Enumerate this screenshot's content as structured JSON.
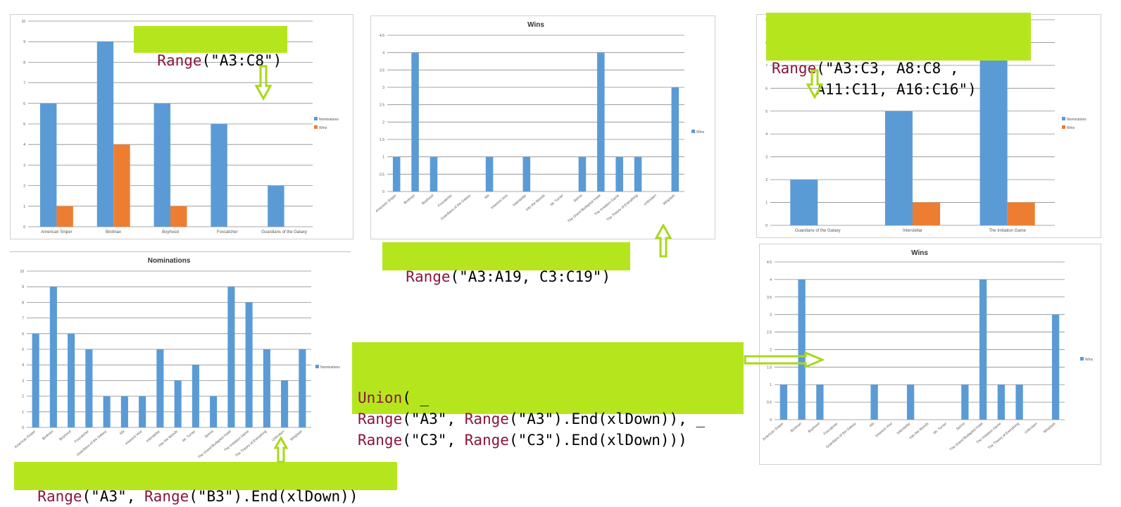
{
  "colors": {
    "blue": "#5b9bd5",
    "orange": "#ed7d31",
    "grid": "#8c8c8c",
    "axis": "#8c8c8c",
    "code_bg": "#b5e61d",
    "code_fn": "#8a1538",
    "arrow": "#b5e61d"
  },
  "chart_data": [
    {
      "id": "chart1",
      "type": "bar",
      "title": "",
      "categories": [
        "American Sniper",
        "Birdman",
        "Boyhood",
        "Foxcatcher",
        "Guardians of the Galaxy"
      ],
      "series": [
        {
          "name": "Nominations",
          "values": [
            6,
            9,
            6,
            5,
            2
          ]
        },
        {
          "name": "Wins",
          "values": [
            1,
            4,
            1,
            0,
            0
          ]
        }
      ],
      "ylim": [
        0,
        10
      ],
      "yticks": [
        "0",
        "1",
        "2",
        "3",
        "4",
        "5",
        "6",
        "7",
        "8",
        "9",
        "10"
      ],
      "legend": "right",
      "grid": true
    },
    {
      "id": "chart2",
      "type": "bar",
      "title": "Wins",
      "categories": [
        "American Sniper",
        "Birdman",
        "Boyhood",
        "Foxcatcher",
        "Guardians of the Galaxy",
        "Ida",
        "Inherent Vice",
        "Interstellar",
        "Into the Woods",
        "Mr. Turner",
        "Selma",
        "The Grand Budapest Hotel",
        "The Imitation Game",
        "The Theory of Everything",
        "Unbroken",
        "Whiplash"
      ],
      "series": [
        {
          "name": "Wins",
          "values": [
            1,
            4,
            1,
            0,
            0,
            1,
            0,
            1,
            0,
            0,
            1,
            4,
            1,
            1,
            0,
            3
          ]
        }
      ],
      "ylim": [
        0,
        4.5
      ],
      "yticks": [
        "0",
        "0.5",
        "1",
        "1.5",
        "2",
        "2.5",
        "3",
        "3.5",
        "4",
        "4.5"
      ],
      "legend": "right",
      "grid": true
    },
    {
      "id": "chart3",
      "type": "bar",
      "title": "",
      "categories": [
        "Guardians of the Galaxy",
        "Interstellar",
        "The Imitation Game"
      ],
      "series": [
        {
          "name": "Nominations",
          "values": [
            2,
            5,
            8
          ]
        },
        {
          "name": "Wins",
          "values": [
            0,
            1,
            1
          ]
        }
      ],
      "ylim": [
        0,
        9
      ],
      "yticks": [
        "0",
        "1",
        "2",
        "3",
        "4",
        "5",
        "6",
        "7",
        "8",
        "9"
      ],
      "legend": "right",
      "grid": true
    },
    {
      "id": "chart4",
      "type": "bar",
      "title": "Nominations",
      "categories": [
        "American Sniper",
        "Birdman",
        "Boyhood",
        "Foxcatcher",
        "Guardians of the Galaxy",
        "Ida",
        "Inherent Vice",
        "Interstellar",
        "Into the Woods",
        "Mr. Turner",
        "Selma",
        "The Grand Budapest Hotel",
        "The Imitation Game",
        "The Theory of Everything",
        "Unbroken",
        "Whiplash"
      ],
      "series": [
        {
          "name": "Nominations",
          "values": [
            6,
            9,
            6,
            5,
            2,
            2,
            2,
            5,
            3,
            4,
            2,
            9,
            8,
            5,
            3,
            5
          ]
        }
      ],
      "ylim": [
        0,
        10
      ],
      "yticks": [
        "0",
        "1",
        "2",
        "3",
        "4",
        "5",
        "6",
        "7",
        "8",
        "9",
        "10"
      ],
      "legend": "right",
      "grid": true
    },
    {
      "id": "chart5",
      "type": "bar",
      "title": "Wins",
      "categories": [
        "American Sniper",
        "Birdman",
        "Boyhood",
        "Foxcatcher",
        "Guardians of the Galaxy",
        "Ida",
        "Inherent Vice",
        "Interstellar",
        "Into the Woods",
        "Mr. Turner",
        "Selma",
        "The Grand Budapest Hotel",
        "The Imitation Game",
        "The Theory of Everything",
        "Unbroken",
        "Whiplash"
      ],
      "series": [
        {
          "name": "Wins",
          "values": [
            1,
            4,
            1,
            0,
            0,
            1,
            0,
            1,
            0,
            0,
            1,
            4,
            1,
            1,
            0,
            3
          ]
        }
      ],
      "ylim": [
        0,
        4.5
      ],
      "yticks": [
        "0",
        "0.5",
        "1",
        "1.5",
        "2",
        "2.5",
        "3",
        "3.5",
        "4",
        "4.5"
      ],
      "legend": "right",
      "grid": true
    }
  ],
  "code_boxes": {
    "box1": {
      "fn": "Range",
      "arg": "(\"A3:C8\")"
    },
    "box2": {
      "fn": "Range",
      "arg": "(\"A3:A19, C3:C19\")"
    },
    "box3": {
      "fn": "Range",
      "arg1": "(\"A3:C3, A8:C8 ,",
      "line2": "     A11:C11, A16:C16\")"
    },
    "box4": {
      "l1_fn": "Union",
      "l1_rest": "( _",
      "l2_fn1": "Range",
      "l2_a": "(\"A3\", ",
      "l2_fn2": "Range",
      "l2_b": "(\"A3\").End(xlDown)), _",
      "l3_fn1": "Range",
      "l3_a": "(\"C3\", ",
      "l3_fn2": "Range",
      "l3_b": "(\"C3\").End(xlDown)))"
    },
    "box5": {
      "fn1": "Range",
      "a": "(\"A3\", ",
      "fn2": "Range",
      "b": "(\"B3\").End(xlDown))"
    }
  }
}
